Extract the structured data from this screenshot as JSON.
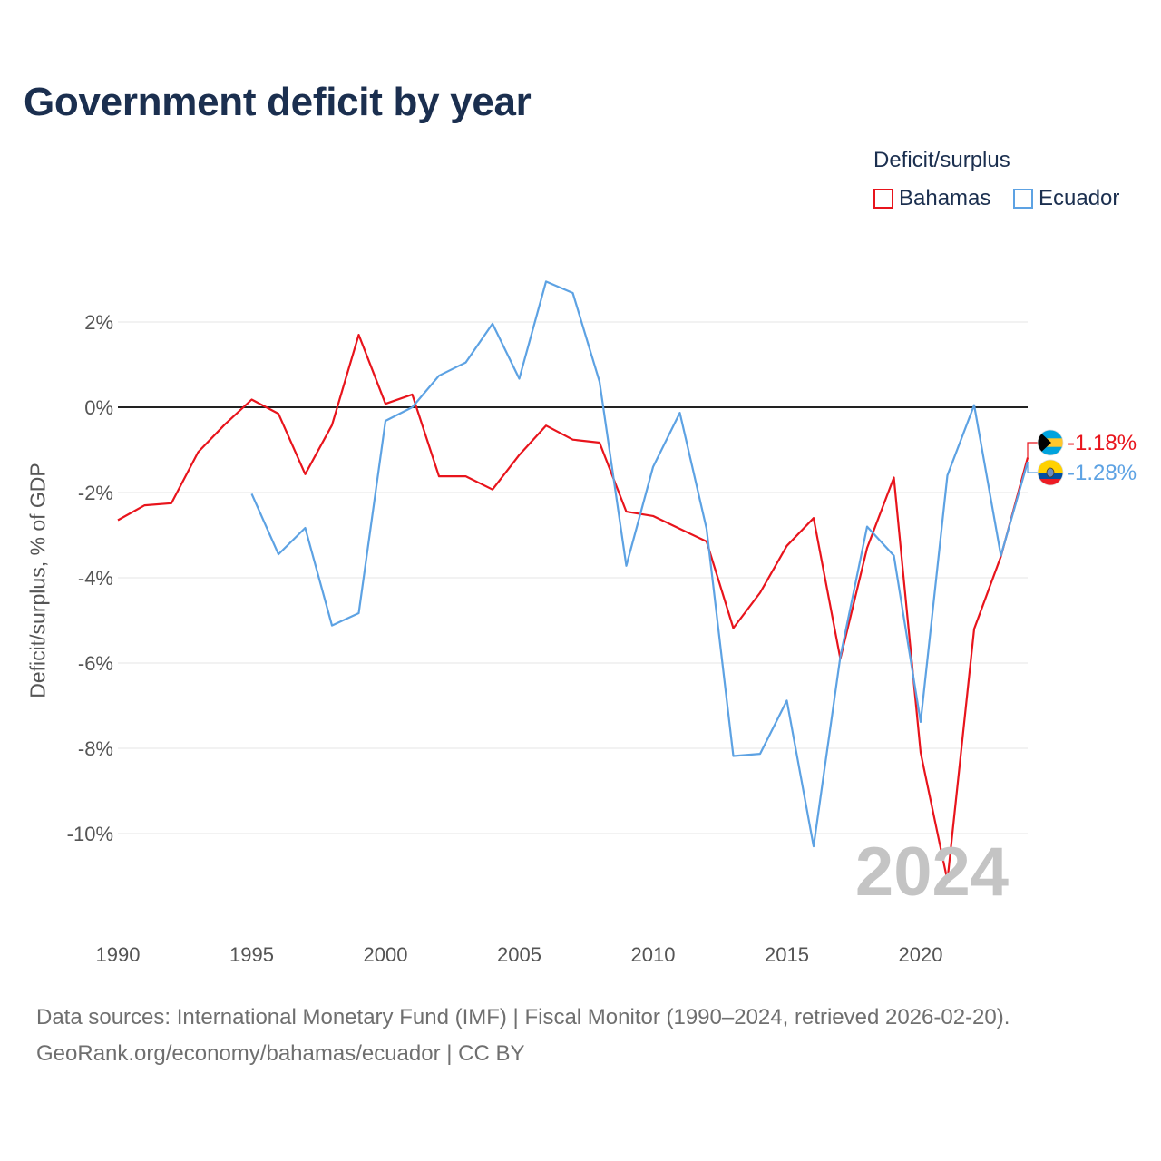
{
  "chart_data": {
    "type": "line",
    "title": "Government deficit by year",
    "xlabel": "",
    "ylabel": "Deficit/surplus, % of GDP",
    "legend_title": "Deficit/surplus",
    "legend_position": "top-right",
    "grid": true,
    "watermark_year": "2024",
    "xlim": [
      1990,
      2024
    ],
    "ylim": [
      -12,
      3.5
    ],
    "x_ticks": [
      1990,
      1995,
      2000,
      2005,
      2010,
      2015,
      2020
    ],
    "x_tick_labels": [
      "1990",
      "1995",
      "2000",
      "2005",
      "2010",
      "2015",
      "2020"
    ],
    "y_ticks": [
      2,
      0,
      -2,
      -4,
      -6,
      -8,
      -10
    ],
    "y_tick_labels": [
      "2%",
      "0%",
      "-2%",
      "-4%",
      "-6%",
      "-8%",
      "-10%"
    ],
    "series": [
      {
        "name": "Bahamas",
        "color": "#e8141c",
        "end_label": "-1.18%",
        "flag": "bahamas-flag-icon",
        "x": [
          1990,
          1991,
          1992,
          1993,
          1994,
          1995,
          1996,
          1997,
          1998,
          1999,
          2000,
          2001,
          2002,
          2003,
          2004,
          2005,
          2006,
          2007,
          2008,
          2009,
          2010,
          2011,
          2012,
          2013,
          2014,
          2015,
          2016,
          2017,
          2018,
          2019,
          2020,
          2021,
          2022,
          2023,
          2024
        ],
        "values": [
          -2.65,
          -2.3,
          -2.25,
          -1.05,
          -0.4,
          0.18,
          -0.15,
          -1.57,
          -0.42,
          1.7,
          0.08,
          0.3,
          -1.62,
          -1.62,
          -1.93,
          -1.12,
          -0.43,
          -0.76,
          -0.83,
          -2.45,
          -2.55,
          -2.85,
          -3.15,
          -5.18,
          -4.35,
          -3.25,
          -2.6,
          -5.9,
          -3.3,
          -1.65,
          -8.1,
          -11.1,
          -5.2,
          -3.5,
          -1.18
        ]
      },
      {
        "name": "Ecuador",
        "color": "#5da2e3",
        "end_label": "-1.28%",
        "flag": "ecuador-flag-icon",
        "x": [
          1995,
          1996,
          1997,
          1998,
          1999,
          2000,
          2001,
          2002,
          2003,
          2004,
          2005,
          2006,
          2007,
          2008,
          2009,
          2010,
          2011,
          2012,
          2013,
          2014,
          2015,
          2016,
          2017,
          2018,
          2019,
          2020,
          2021,
          2022,
          2023,
          2024
        ],
        "values": [
          -2.03,
          -3.45,
          -2.83,
          -5.12,
          -4.83,
          -0.32,
          0.0,
          0.74,
          1.05,
          1.96,
          0.67,
          2.95,
          2.68,
          0.6,
          -3.72,
          -1.4,
          -0.13,
          -2.85,
          -8.18,
          -8.13,
          -6.88,
          -10.3,
          -5.85,
          -2.8,
          -3.48,
          -7.38,
          -1.6,
          0.05,
          -3.48,
          -1.28
        ]
      }
    ]
  },
  "footer": {
    "sources": "Data sources: International Monetary Fund (IMF) | Fiscal Monitor (1990–2024, retrieved 2026-02-20).",
    "credit": "GeoRank.org/economy/bahamas/ecuador | CC BY"
  }
}
